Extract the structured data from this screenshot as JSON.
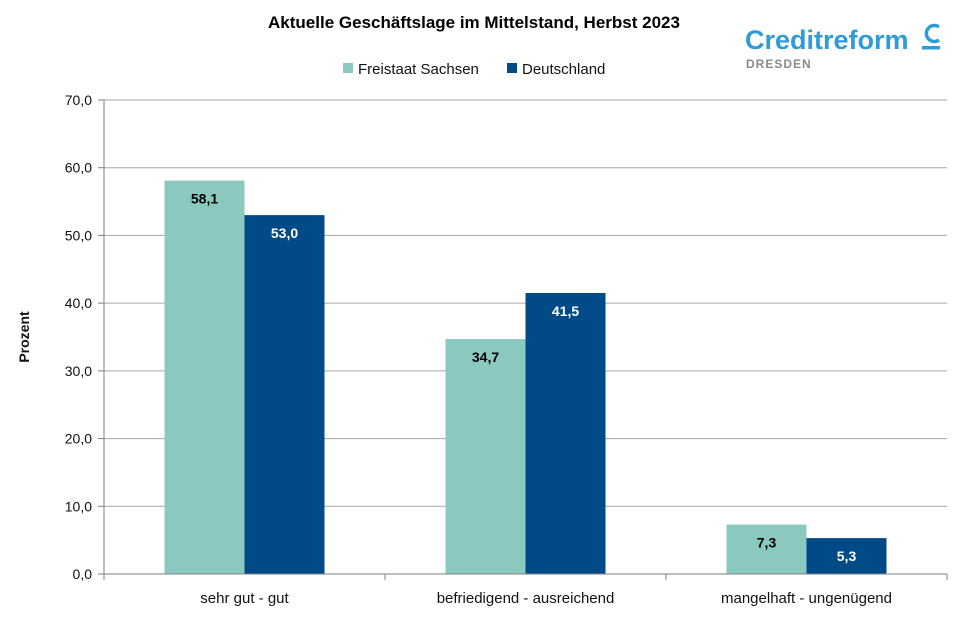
{
  "logo": {
    "name": "Creditreform",
    "sub": "DRESDEN",
    "color": "#2e9cd6",
    "sub_color": "#8a8a8a"
  },
  "chart_data": {
    "type": "bar",
    "title": "Aktuelle Geschäftslage im Mittelstand, Herbst 2023",
    "xlabel": "",
    "ylabel": "Prozent",
    "categories": [
      "sehr gut - gut",
      "befriedigend - ausreichend",
      "mangelhaft - ungenügend"
    ],
    "series": [
      {
        "name": "Freistaat Sachsen",
        "color": "#8ac8c0",
        "label_color": "#000000",
        "values": [
          58.1,
          34.7,
          7.3
        ],
        "labels": [
          "58,1",
          "34,7",
          "7,3"
        ]
      },
      {
        "name": "Deutschland",
        "color": "#004a87",
        "label_color": "#ffffff",
        "values": [
          53.0,
          41.5,
          5.3
        ],
        "labels": [
          "53,0",
          "41,5",
          "5,3"
        ]
      }
    ],
    "ylim": [
      0,
      70
    ],
    "yticks": [
      0,
      10,
      20,
      30,
      40,
      50,
      60,
      70
    ],
    "ytick_labels": [
      "0,0",
      "10,0",
      "20,0",
      "30,0",
      "40,0",
      "50,0",
      "60,0",
      "70,0"
    ],
    "grid": true,
    "legend_position": "top-center"
  }
}
